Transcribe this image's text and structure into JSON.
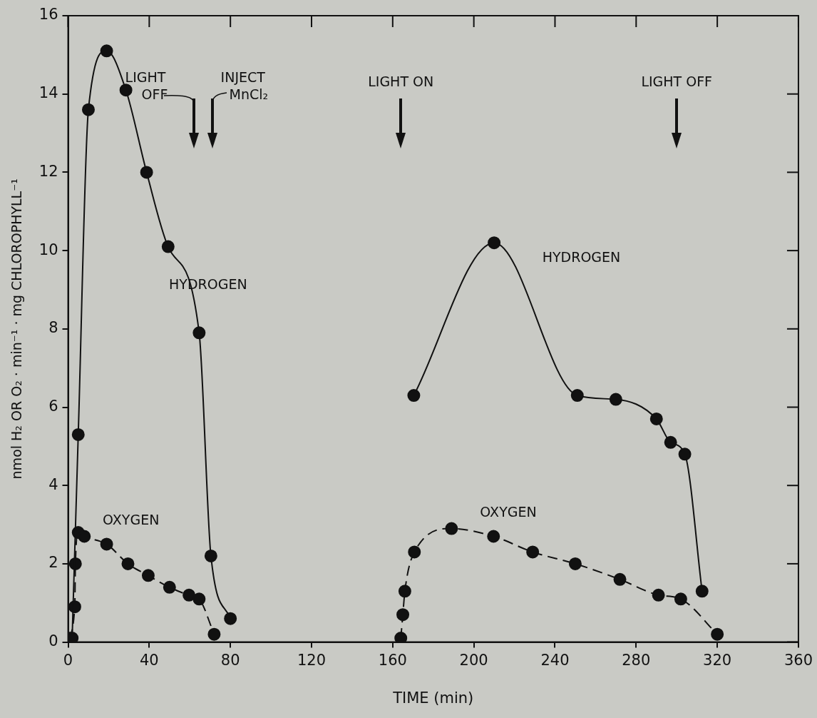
{
  "chart_data": {
    "type": "line",
    "xlabel": "TIME (min)",
    "ylabel": "nmol H₂ OR O₂ · min⁻¹ · mg CHLOROPHYLL⁻¹",
    "xlim": [
      0,
      360
    ],
    "xticks": [
      0,
      40,
      80,
      120,
      160,
      200,
      240,
      280,
      320,
      360
    ],
    "ylim": [
      0,
      16
    ],
    "yticks": [
      0,
      2,
      4,
      6,
      8,
      10,
      12,
      14,
      16
    ],
    "grid": false,
    "legend": false,
    "marker": "circle",
    "series": [
      {
        "name": "HYDROGEN",
        "color": "#111111",
        "line_style": "solid",
        "x": [
          2,
          5,
          10,
          19,
          28.5,
          38.7,
          49.3,
          64.6,
          70.4,
          80
        ],
        "values": [
          0.1,
          5.3,
          13.6,
          15.1,
          14.1,
          12.0,
          10.1,
          7.9,
          2.2,
          0.6
        ]
      },
      {
        "name": "OXYGEN",
        "color": "#111111",
        "line_style": "dashed",
        "x": [
          0,
          3.3,
          3.6,
          5,
          8,
          19,
          29.5,
          39.5,
          50,
          59.6,
          64.6,
          72
        ],
        "values": [
          0.1,
          0.9,
          2.0,
          2.8,
          2.7,
          2.5,
          2.0,
          1.7,
          1.4,
          1.2,
          1.1,
          0.2
        ]
      },
      {
        "name": "HYDROGEN",
        "color": "#111111",
        "line_style": "solid",
        "x": [
          170.4,
          210,
          251,
          270,
          290,
          297,
          304,
          312.5
        ],
        "values": [
          6.3,
          10.2,
          6.3,
          6.2,
          5.7,
          5.1,
          4.8,
          1.3
        ]
      },
      {
        "name": "OXYGEN",
        "color": "#111111",
        "line_style": "dashed",
        "x": [
          164,
          165,
          166,
          170.7,
          189,
          209.7,
          229,
          250,
          272,
          291,
          302,
          320
        ],
        "values": [
          0.1,
          0.7,
          1.3,
          2.3,
          2.9,
          2.7,
          2.3,
          2.0,
          1.6,
          1.2,
          1.1,
          0.2
        ]
      }
    ],
    "annotations": [
      "LIGHT OFF",
      "INJECT MnCl₂",
      "LIGHT ON",
      "LIGHT OFF"
    ]
  }
}
